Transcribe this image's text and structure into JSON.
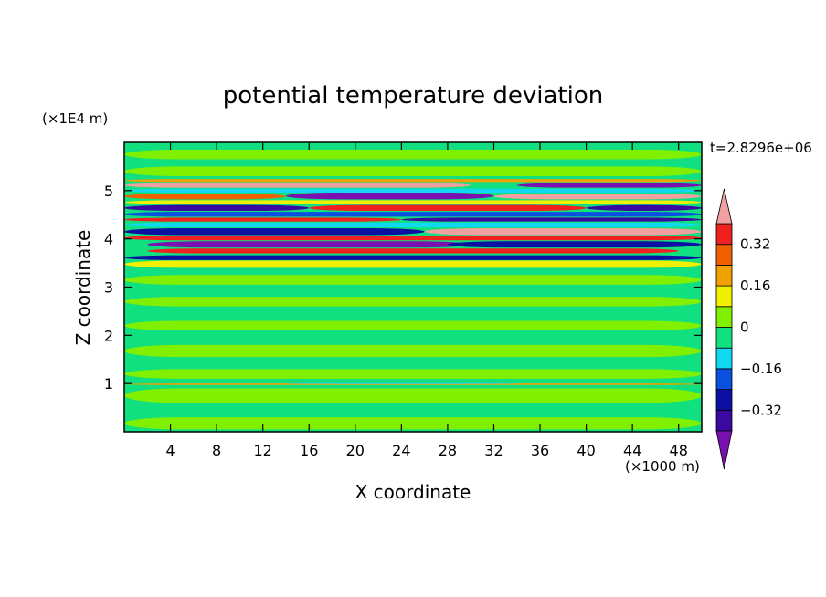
{
  "chart_data": {
    "type": "heatmap",
    "title": "potential temperature deviation",
    "xlabel": "X coordinate",
    "ylabel": "Z coordinate",
    "x_unit_label": "(×1000 m)",
    "y_unit_label": "(×1E4 m)",
    "time_label": "t=2.8296e+06",
    "xlim": [
      0,
      50
    ],
    "ylim": [
      0,
      6
    ],
    "x_ticks": [
      4,
      8,
      12,
      16,
      20,
      24,
      28,
      32,
      36,
      40,
      44,
      48
    ],
    "x_tick_labels": [
      "4",
      "8",
      "12",
      "16",
      "20",
      "24",
      "28",
      "32",
      "36",
      "40",
      "44",
      "48"
    ],
    "y_ticks": [
      1,
      2,
      3,
      4,
      5
    ],
    "y_tick_labels": [
      "1",
      "2",
      "3",
      "4",
      "5"
    ],
    "colorbar": {
      "levels": [
        -0.48,
        -0.4,
        -0.32,
        -0.24,
        -0.16,
        -0.08,
        0,
        0.08,
        0.16,
        0.24,
        0.32,
        0.4,
        0.48
      ],
      "labeled_levels": [
        0.32,
        0.16,
        0,
        -0.16,
        -0.32
      ],
      "labels": [
        "0.32",
        "0.16",
        "0",
        "−0.16",
        "−0.32"
      ],
      "colors": [
        "#7a10b0",
        "#3a0aa0",
        "#0a10a0",
        "#0a50e0",
        "#10d8f0",
        "#10e080",
        "#80f000",
        "#f0f000",
        "#f0a000",
        "#f06000",
        "#f02020",
        "#f0a0a0"
      ],
      "extend": "both"
    },
    "background_color": "#10e080",
    "bands": [
      {
        "x0": 0,
        "x1": 50,
        "z0": 0.05,
        "z1": 0.3,
        "value": 0.04
      },
      {
        "x0": 0,
        "x1": 50,
        "z0": 0.6,
        "z1": 0.9,
        "value": 0.04
      },
      {
        "x0": 0,
        "x1": 50,
        "z0": 0.97,
        "z1": 1.0,
        "value": 0.2
      },
      {
        "x0": 14,
        "x1": 34,
        "z0": 0.99,
        "z1": 1.01,
        "value": -0.12
      },
      {
        "x0": 0,
        "x1": 50,
        "z0": 1.1,
        "z1": 1.3,
        "value": 0.04
      },
      {
        "x0": 0,
        "x1": 50,
        "z0": 1.55,
        "z1": 1.8,
        "value": 0.04
      },
      {
        "x0": 0,
        "x1": 50,
        "z0": 2.1,
        "z1": 2.3,
        "value": 0.04
      },
      {
        "x0": 0,
        "x1": 50,
        "z0": 2.6,
        "z1": 2.8,
        "value": 0.04
      },
      {
        "x0": 0,
        "x1": 50,
        "z0": 3.05,
        "z1": 3.25,
        "value": 0.04
      },
      {
        "x0": 0,
        "x1": 50,
        "z0": 3.4,
        "z1": 3.55,
        "value": 0.12
      },
      {
        "x0": 0,
        "x1": 50,
        "z0": 3.56,
        "z1": 3.66,
        "value": -0.32
      },
      {
        "x0": 2,
        "x1": 48,
        "z0": 3.7,
        "z1": 3.8,
        "value": 0.36
      },
      {
        "x0": 2,
        "x1": 30,
        "z0": 3.82,
        "z1": 3.95,
        "value": -0.45
      },
      {
        "x0": 28,
        "x1": 50,
        "z0": 3.82,
        "z1": 3.95,
        "value": -0.32
      },
      {
        "x0": 0,
        "x1": 50,
        "z0": 3.97,
        "z1": 4.07,
        "value": 0.32
      },
      {
        "x0": 0,
        "x1": 26,
        "z0": 4.08,
        "z1": 4.22,
        "value": -0.32
      },
      {
        "x0": 26,
        "x1": 50,
        "z0": 4.08,
        "z1": 4.22,
        "value": 0.44
      },
      {
        "x0": 0,
        "x1": 50,
        "z0": 4.24,
        "z1": 4.34,
        "value": -0.12
      },
      {
        "x0": 0,
        "x1": 24,
        "z0": 4.36,
        "z1": 4.44,
        "value": 0.36
      },
      {
        "x0": 24,
        "x1": 50,
        "z0": 4.36,
        "z1": 4.44,
        "value": -0.4
      },
      {
        "x0": 0,
        "x1": 50,
        "z0": 4.46,
        "z1": 4.56,
        "value": -0.2
      },
      {
        "x0": 0,
        "x1": 16,
        "z0": 4.58,
        "z1": 4.7,
        "value": -0.4
      },
      {
        "x0": 16,
        "x1": 40,
        "z0": 4.58,
        "z1": 4.7,
        "value": 0.36
      },
      {
        "x0": 40,
        "x1": 50,
        "z0": 4.58,
        "z1": 4.7,
        "value": -0.36
      },
      {
        "x0": 0,
        "x1": 50,
        "z0": 4.72,
        "z1": 4.8,
        "value": 0.12
      },
      {
        "x0": 0,
        "x1": 14,
        "z0": 4.82,
        "z1": 4.94,
        "value": 0.3
      },
      {
        "x0": 14,
        "x1": 32,
        "z0": 4.82,
        "z1": 4.96,
        "value": -0.45
      },
      {
        "x0": 32,
        "x1": 50,
        "z0": 4.82,
        "z1": 4.94,
        "value": 0.44
      },
      {
        "x0": 0,
        "x1": 50,
        "z0": 4.96,
        "z1": 5.04,
        "value": -0.16
      },
      {
        "x0": 0,
        "x1": 30,
        "z0": 5.06,
        "z1": 5.16,
        "value": 0.44
      },
      {
        "x0": 34,
        "x1": 50,
        "z0": 5.06,
        "z1": 5.16,
        "value": -0.45
      },
      {
        "x0": 0,
        "x1": 50,
        "z0": 5.18,
        "z1": 5.24,
        "value": 0.2
      },
      {
        "x0": 0,
        "x1": 50,
        "z0": 5.3,
        "z1": 5.5,
        "value": 0.04
      },
      {
        "x0": 0,
        "x1": 50,
        "z0": 5.65,
        "z1": 5.85,
        "value": 0.04
      }
    ]
  }
}
